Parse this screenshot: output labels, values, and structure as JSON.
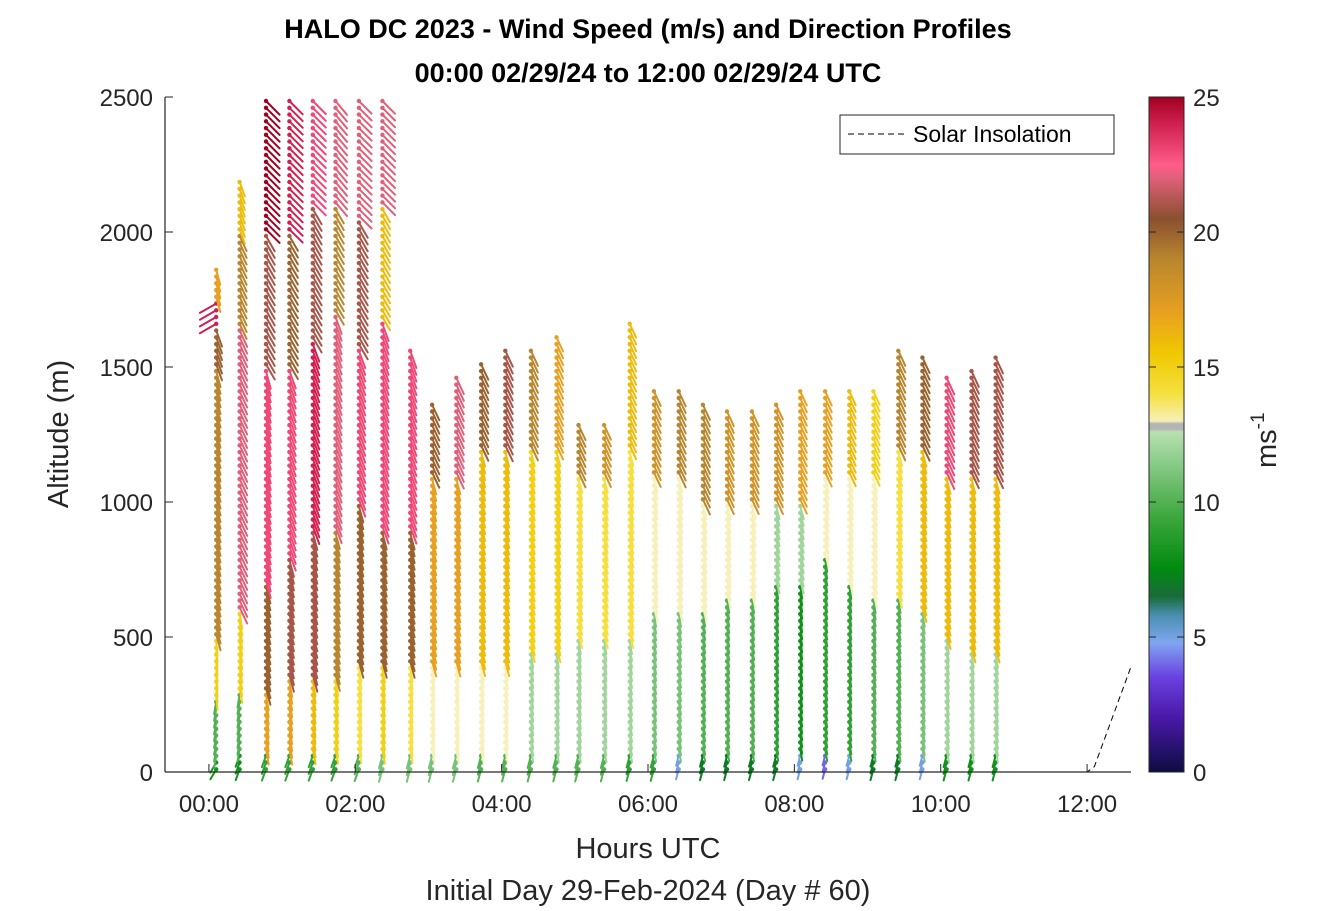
{
  "chart_data": {
    "type": "wind-barb-profile",
    "title_line1": "HALO DC 2023 - Wind Speed (m/s) and Direction Profiles",
    "title_line2": "00:00 02/29/24 to 12:00 02/29/24  UTC",
    "xlabel": "Hours UTC",
    "xlabel2": "Initial Day 29-Feb-2024 (Day # 60)",
    "ylabel": "Altitude (m)",
    "xlim": [
      -0.6,
      12.6
    ],
    "ylim": [
      0,
      2500
    ],
    "x_ticks": [
      0,
      2,
      4,
      6,
      8,
      10,
      12
    ],
    "x_tick_labels": [
      "00:00",
      "02:00",
      "04:00",
      "06:00",
      "08:00",
      "10:00",
      "12:00"
    ],
    "y_ticks": [
      0,
      500,
      1000,
      1500,
      2000,
      2500
    ],
    "y_tick_labels": [
      "0",
      "500",
      "1000",
      "1500",
      "2000",
      "2500"
    ],
    "colorbar": {
      "label": "ms",
      "label_superscript": "-1",
      "range": [
        0,
        25
      ],
      "ticks": [
        0,
        5,
        10,
        15,
        20,
        25
      ],
      "tick_labels": [
        "0",
        "5",
        "10",
        "15",
        "20",
        "25"
      ],
      "stops": [
        {
          "v": 0,
          "c": "#0d0d40"
        },
        {
          "v": 2,
          "c": "#4a18a8"
        },
        {
          "v": 3.5,
          "c": "#6a40e0"
        },
        {
          "v": 4.8,
          "c": "#7fa6f0"
        },
        {
          "v": 5.8,
          "c": "#4a8fb0"
        },
        {
          "v": 6.5,
          "c": "#1a6b3a"
        },
        {
          "v": 7.5,
          "c": "#008a10"
        },
        {
          "v": 9.5,
          "c": "#40a840"
        },
        {
          "v": 11.5,
          "c": "#8ccc8c"
        },
        {
          "v": 12.6,
          "c": "#b8e0b0"
        },
        {
          "v": 12.7,
          "c": "#b4b4b4"
        },
        {
          "v": 12.9,
          "c": "#b4b4b4"
        },
        {
          "v": 13.0,
          "c": "#f7f0b8"
        },
        {
          "v": 14.0,
          "c": "#f5e040"
        },
        {
          "v": 15.5,
          "c": "#f0c800"
        },
        {
          "v": 17.0,
          "c": "#e8a020"
        },
        {
          "v": 19.0,
          "c": "#b8862e"
        },
        {
          "v": 20.5,
          "c": "#8a5030"
        },
        {
          "v": 22.0,
          "c": "#e0607a"
        },
        {
          "v": 22.5,
          "c": "#ff5c8a"
        },
        {
          "v": 24.0,
          "c": "#d02050"
        },
        {
          "v": 25,
          "c": "#a00020"
        }
      ]
    },
    "legend": {
      "entries": [
        {
          "name": "Solar Insolation",
          "style": "dashed-black"
        }
      ],
      "position": "top-right"
    },
    "solar_insolation": {
      "x": [
        -0.6,
        12.0,
        12.1,
        12.6
      ],
      "y": [
        0,
        0,
        20,
        390
      ]
    },
    "profiles": [
      {
        "t": 0.1,
        "top": 1880,
        "segments": [
          {
            "to": 50,
            "s": 8,
            "d": 330
          },
          {
            "to": 280,
            "s": 10,
            "d": 350
          },
          {
            "to": 500,
            "s": 15,
            "d": 5
          },
          {
            "to": 1500,
            "s": 19,
            "d": 15
          },
          {
            "to": 1650,
            "s": 20,
            "d": 20
          },
          {
            "to": 1750,
            "s": 24,
            "d": 300
          },
          {
            "to": 1880,
            "s": 17,
            "d": 15
          }
        ]
      },
      {
        "t": 0.42,
        "top": 2200,
        "segments": [
          {
            "to": 60,
            "s": 8,
            "d": 340
          },
          {
            "to": 300,
            "s": 10,
            "d": 350
          },
          {
            "to": 600,
            "s": 15,
            "d": 10
          },
          {
            "to": 1650,
            "s": 22,
            "d": 25
          },
          {
            "to": 2000,
            "s": 19,
            "d": 25
          },
          {
            "to": 2200,
            "s": 16,
            "d": 20
          }
        ]
      },
      {
        "t": 0.78,
        "top": 2500,
        "segments": [
          {
            "to": 60,
            "s": 9,
            "d": 340
          },
          {
            "to": 300,
            "s": 17,
            "d": 10
          },
          {
            "to": 700,
            "s": 20,
            "d": 15
          },
          {
            "to": 1500,
            "s": 23,
            "d": 15
          },
          {
            "to": 2000,
            "s": 21,
            "d": 30
          },
          {
            "to": 2500,
            "s": 25,
            "d": 45
          }
        ]
      },
      {
        "t": 1.1,
        "top": 2500,
        "segments": [
          {
            "to": 60,
            "s": 9,
            "d": 340
          },
          {
            "to": 350,
            "s": 17,
            "d": 10
          },
          {
            "to": 800,
            "s": 21,
            "d": 15
          },
          {
            "to": 1500,
            "s": 23,
            "d": 20
          },
          {
            "to": 2000,
            "s": 20,
            "d": 30
          },
          {
            "to": 2500,
            "s": 24,
            "d": 45
          }
        ]
      },
      {
        "t": 1.42,
        "top": 2500,
        "segments": [
          {
            "to": 60,
            "s": 9,
            "d": 340
          },
          {
            "to": 350,
            "s": 16,
            "d": 10
          },
          {
            "to": 900,
            "s": 21,
            "d": 15
          },
          {
            "to": 1600,
            "s": 24,
            "d": 20
          },
          {
            "to": 2100,
            "s": 21,
            "d": 30
          },
          {
            "to": 2500,
            "s": 23,
            "d": 45
          }
        ]
      },
      {
        "t": 1.73,
        "top": 2500,
        "segments": [
          {
            "to": 60,
            "s": 9,
            "d": 340
          },
          {
            "to": 350,
            "s": 15,
            "d": 10
          },
          {
            "to": 900,
            "s": 19,
            "d": 15
          },
          {
            "to": 1700,
            "s": 22,
            "d": 20
          },
          {
            "to": 2100,
            "s": 19,
            "d": 30
          },
          {
            "to": 2500,
            "s": 22,
            "d": 40
          }
        ]
      },
      {
        "t": 2.05,
        "top": 2500,
        "segments": [
          {
            "to": 60,
            "s": 10,
            "d": 340
          },
          {
            "to": 400,
            "s": 14,
            "d": 10
          },
          {
            "to": 1000,
            "s": 20,
            "d": 15
          },
          {
            "to": 1580,
            "s": 23,
            "d": 20
          },
          {
            "to": 2050,
            "s": 21,
            "d": 30
          },
          {
            "to": 2500,
            "s": 22,
            "d": 45
          }
        ]
      },
      {
        "t": 2.37,
        "top": 2500,
        "segments": [
          {
            "to": 70,
            "s": 11,
            "d": 345
          },
          {
            "to": 400,
            "s": 15,
            "d": 10
          },
          {
            "to": 900,
            "s": 20,
            "d": 15
          },
          {
            "to": 1660,
            "s": 23,
            "d": 20
          },
          {
            "to": 2100,
            "s": 16,
            "d": 30
          },
          {
            "to": 2500,
            "s": 22,
            "d": 45
          }
        ]
      },
      {
        "t": 2.75,
        "top": 1580,
        "segments": [
          {
            "to": 70,
            "s": 11,
            "d": 345
          },
          {
            "to": 400,
            "s": 14,
            "d": 10
          },
          {
            "to": 900,
            "s": 20,
            "d": 15
          },
          {
            "to": 1580,
            "s": 23,
            "d": 20
          }
        ]
      },
      {
        "t": 3.05,
        "top": 1370,
        "segments": [
          {
            "to": 70,
            "s": 11,
            "d": 345
          },
          {
            "to": 400,
            "s": 13,
            "d": 10
          },
          {
            "to": 1100,
            "s": 17,
            "d": 15
          },
          {
            "to": 1370,
            "s": 20,
            "d": 25
          }
        ]
      },
      {
        "t": 3.38,
        "top": 1460,
        "segments": [
          {
            "to": 70,
            "s": 11,
            "d": 345
          },
          {
            "to": 400,
            "s": 13,
            "d": 10
          },
          {
            "to": 1100,
            "s": 17,
            "d": 15
          },
          {
            "to": 1460,
            "s": 22,
            "d": 25
          }
        ]
      },
      {
        "t": 3.72,
        "top": 1530,
        "segments": [
          {
            "to": 70,
            "s": 10,
            "d": 345
          },
          {
            "to": 400,
            "s": 13,
            "d": 10
          },
          {
            "to": 1200,
            "s": 16,
            "d": 15
          },
          {
            "to": 1530,
            "s": 20,
            "d": 25
          }
        ]
      },
      {
        "t": 4.05,
        "top": 1580,
        "segments": [
          {
            "to": 70,
            "s": 10,
            "d": 345
          },
          {
            "to": 400,
            "s": 13,
            "d": 10
          },
          {
            "to": 1200,
            "s": 16,
            "d": 15
          },
          {
            "to": 1580,
            "s": 21,
            "d": 25
          }
        ]
      },
      {
        "t": 4.4,
        "top": 1580,
        "segments": [
          {
            "to": 70,
            "s": 10,
            "d": 345
          },
          {
            "to": 450,
            "s": 12,
            "d": 10
          },
          {
            "to": 1200,
            "s": 15,
            "d": 15
          },
          {
            "to": 1580,
            "s": 19,
            "d": 25
          }
        ]
      },
      {
        "t": 4.75,
        "top": 1610,
        "segments": [
          {
            "to": 70,
            "s": 10,
            "d": 345
          },
          {
            "to": 450,
            "s": 12,
            "d": 10
          },
          {
            "to": 1200,
            "s": 15,
            "d": 15
          },
          {
            "to": 1610,
            "s": 17,
            "d": 25
          }
        ]
      },
      {
        "t": 5.05,
        "top": 1300,
        "segments": [
          {
            "to": 70,
            "s": 10,
            "d": 345
          },
          {
            "to": 500,
            "s": 12,
            "d": 10
          },
          {
            "to": 1100,
            "s": 14,
            "d": 15
          },
          {
            "to": 1300,
            "s": 19,
            "d": 25
          }
        ]
      },
      {
        "t": 5.4,
        "top": 1300,
        "segments": [
          {
            "to": 70,
            "s": 10,
            "d": 345
          },
          {
            "to": 500,
            "s": 12,
            "d": 10
          },
          {
            "to": 1100,
            "s": 14,
            "d": 15
          },
          {
            "to": 1300,
            "s": 18,
            "d": 25
          }
        ]
      },
      {
        "t": 5.75,
        "top": 1670,
        "segments": [
          {
            "to": 70,
            "s": 9,
            "d": 345
          },
          {
            "to": 500,
            "s": 12,
            "d": 10
          },
          {
            "to": 1200,
            "s": 14,
            "d": 15
          },
          {
            "to": 1670,
            "s": 16,
            "d": 25
          }
        ]
      },
      {
        "t": 6.08,
        "top": 1410,
        "segments": [
          {
            "to": 70,
            "s": 9,
            "d": 345
          },
          {
            "to": 600,
            "s": 11,
            "d": 10
          },
          {
            "to": 1100,
            "s": 13,
            "d": 15
          },
          {
            "to": 1410,
            "s": 18,
            "d": 25
          }
        ]
      },
      {
        "t": 6.42,
        "top": 1410,
        "segments": [
          {
            "to": 70,
            "s": 5,
            "d": 345
          },
          {
            "to": 600,
            "s": 11,
            "d": 10
          },
          {
            "to": 1100,
            "s": 13,
            "d": 15
          },
          {
            "to": 1410,
            "s": 19,
            "d": 25
          }
        ]
      },
      {
        "t": 6.75,
        "top": 1370,
        "segments": [
          {
            "to": 70,
            "s": 7,
            "d": 345
          },
          {
            "to": 600,
            "s": 10,
            "d": 10
          },
          {
            "to": 1000,
            "s": 13,
            "d": 15
          },
          {
            "to": 1370,
            "s": 19,
            "d": 25
          }
        ]
      },
      {
        "t": 7.08,
        "top": 1340,
        "segments": [
          {
            "to": 70,
            "s": 7,
            "d": 345
          },
          {
            "to": 650,
            "s": 10,
            "d": 10
          },
          {
            "to": 1000,
            "s": 13,
            "d": 15
          },
          {
            "to": 1340,
            "s": 18,
            "d": 25
          }
        ]
      },
      {
        "t": 7.42,
        "top": 1340,
        "segments": [
          {
            "to": 70,
            "s": 7,
            "d": 345
          },
          {
            "to": 650,
            "s": 10,
            "d": 10
          },
          {
            "to": 1000,
            "s": 13,
            "d": 15
          },
          {
            "to": 1340,
            "s": 18,
            "d": 25
          }
        ]
      },
      {
        "t": 7.75,
        "top": 1370,
        "segments": [
          {
            "to": 70,
            "s": 7,
            "d": 345
          },
          {
            "to": 700,
            "s": 9,
            "d": 10
          },
          {
            "to": 1000,
            "s": 12,
            "d": 15
          },
          {
            "to": 1370,
            "s": 18,
            "d": 25
          }
        ]
      },
      {
        "t": 8.08,
        "top": 1410,
        "segments": [
          {
            "to": 70,
            "s": 5,
            "d": 345
          },
          {
            "to": 700,
            "s": 8,
            "d": 10
          },
          {
            "to": 1000,
            "s": 12,
            "d": 15
          },
          {
            "to": 1410,
            "s": 17,
            "d": 25
          }
        ]
      },
      {
        "t": 8.42,
        "top": 1410,
        "segments": [
          {
            "to": 70,
            "s": 4,
            "d": 345
          },
          {
            "to": 800,
            "s": 9,
            "d": 10
          },
          {
            "to": 1100,
            "s": 13,
            "d": 15
          },
          {
            "to": 1410,
            "s": 17,
            "d": 25
          }
        ]
      },
      {
        "t": 8.75,
        "top": 1410,
        "segments": [
          {
            "to": 70,
            "s": 5,
            "d": 345
          },
          {
            "to": 700,
            "s": 9,
            "d": 10
          },
          {
            "to": 1100,
            "s": 13,
            "d": 15
          },
          {
            "to": 1410,
            "s": 16,
            "d": 25
          }
        ]
      },
      {
        "t": 9.08,
        "top": 1410,
        "segments": [
          {
            "to": 70,
            "s": 7,
            "d": 345
          },
          {
            "to": 650,
            "s": 10,
            "d": 10
          },
          {
            "to": 1100,
            "s": 13,
            "d": 15
          },
          {
            "to": 1410,
            "s": 15,
            "d": 25
          }
        ]
      },
      {
        "t": 9.42,
        "top": 1580,
        "segments": [
          {
            "to": 70,
            "s": 7,
            "d": 345
          },
          {
            "to": 650,
            "s": 10,
            "d": 10
          },
          {
            "to": 1200,
            "s": 14,
            "d": 15
          },
          {
            "to": 1580,
            "s": 19,
            "d": 25
          }
        ]
      },
      {
        "t": 9.75,
        "top": 1540,
        "segments": [
          {
            "to": 70,
            "s": 5,
            "d": 345
          },
          {
            "to": 600,
            "s": 11,
            "d": 10
          },
          {
            "to": 1200,
            "s": 16,
            "d": 15
          },
          {
            "to": 1540,
            "s": 20,
            "d": 25
          }
        ]
      },
      {
        "t": 10.08,
        "top": 1460,
        "segments": [
          {
            "to": 70,
            "s": 8,
            "d": 345
          },
          {
            "to": 500,
            "s": 12,
            "d": 10
          },
          {
            "to": 1100,
            "s": 16,
            "d": 15
          },
          {
            "to": 1460,
            "s": 23,
            "d": 25
          }
        ]
      },
      {
        "t": 10.42,
        "top": 1500,
        "segments": [
          {
            "to": 70,
            "s": 8,
            "d": 345
          },
          {
            "to": 450,
            "s": 12,
            "d": 10
          },
          {
            "to": 1100,
            "s": 16,
            "d": 15
          },
          {
            "to": 1500,
            "s": 21,
            "d": 25
          }
        ]
      },
      {
        "t": 10.75,
        "top": 1540,
        "segments": [
          {
            "to": 70,
            "s": 8,
            "d": 345
          },
          {
            "to": 450,
            "s": 12,
            "d": 10
          },
          {
            "to": 1100,
            "s": 16,
            "d": 15
          },
          {
            "to": 1540,
            "s": 21,
            "d": 25
          }
        ]
      }
    ]
  }
}
